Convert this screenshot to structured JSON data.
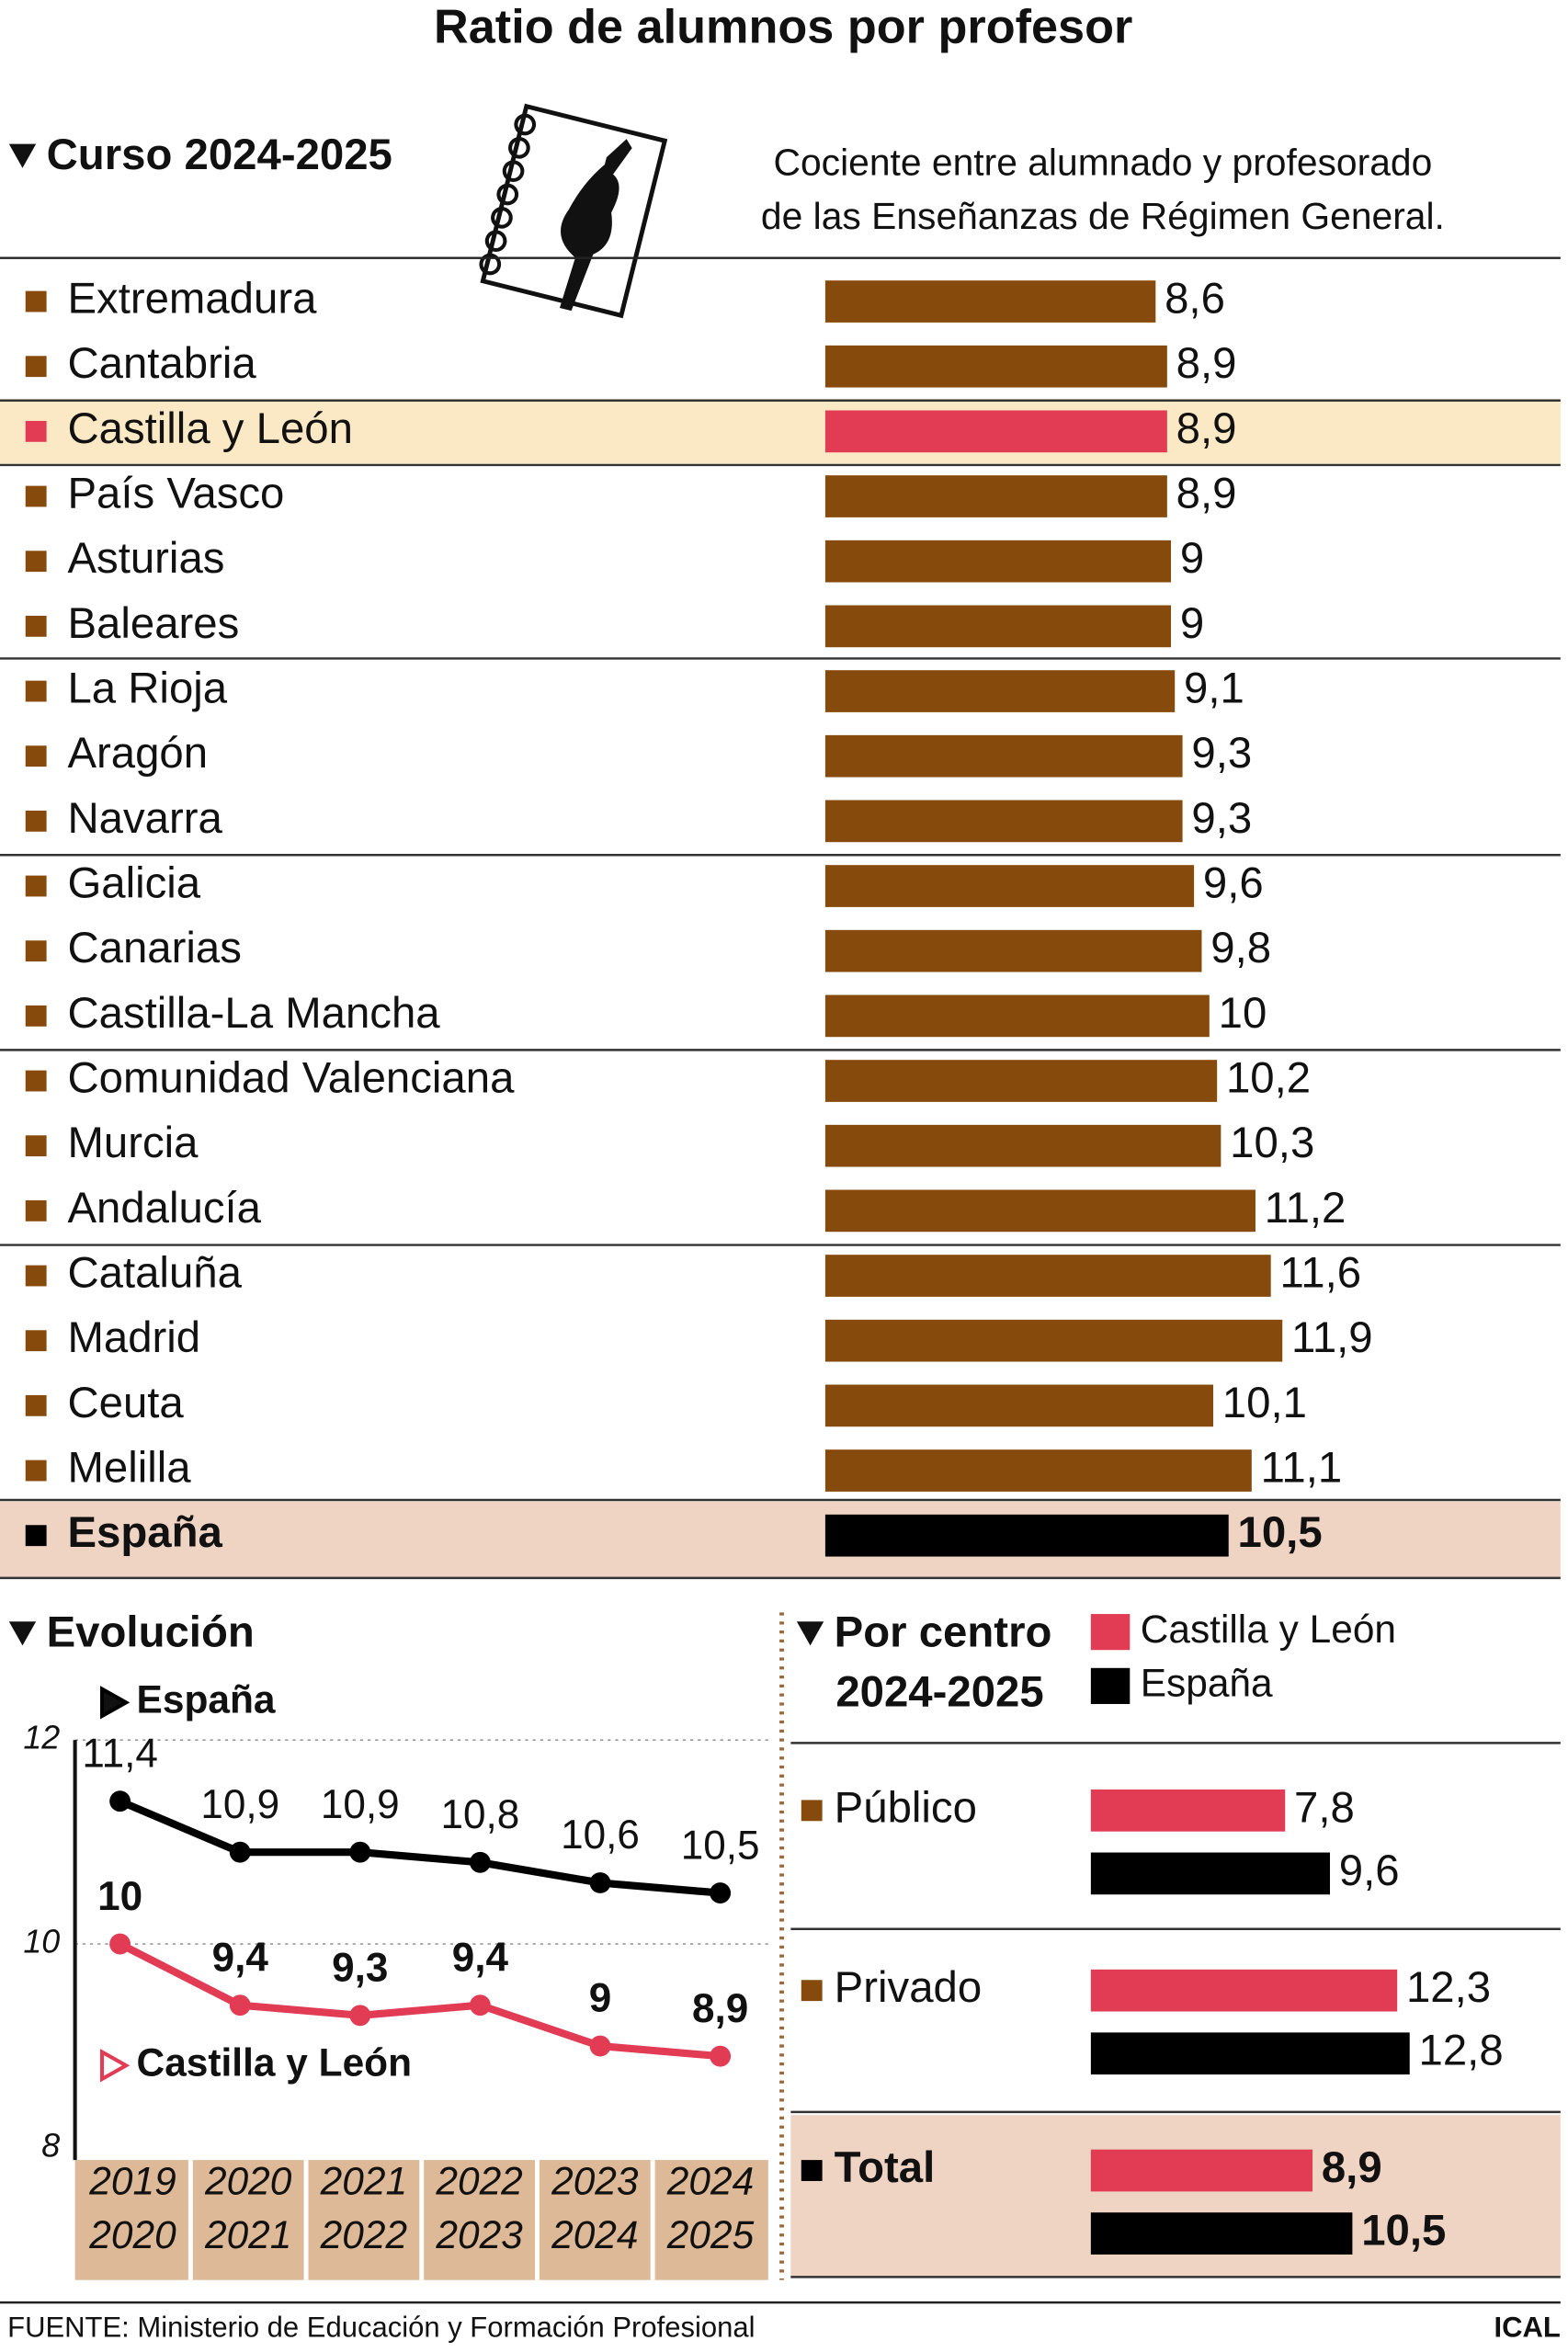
{
  "title": "Ratio de alumnos por profesor",
  "source": "FUENTE: Ministerio de Educación y Formación Profesional",
  "credit": "ICAL",
  "chart_data": [
    {
      "type": "hbar",
      "title": "Curso 2024-2025",
      "subtitle": [
        "Cociente entre alumnado y profesorado",
        "de las Enseñanzas de Régimen General."
      ],
      "categories": [
        "Extremadura",
        "Cantabria",
        "Castilla y León",
        "País Vasco",
        "Asturias",
        "Baleares",
        "La Rioja",
        "Aragón",
        "Navarra",
        "Galicia",
        "Canarias",
        "Castilla-La Mancha",
        "Comunidad Valenciana",
        "Murcia",
        "Andalucía",
        "Cataluña",
        "Madrid",
        "Ceuta",
        "Melilla",
        "España"
      ],
      "values": [
        8.6,
        8.9,
        8.9,
        8.9,
        9,
        9,
        9.1,
        9.3,
        9.3,
        9.6,
        9.8,
        10,
        10.2,
        10.3,
        11.2,
        11.6,
        11.9,
        10.1,
        11.1,
        10.5
      ],
      "value_labels": [
        "8,6",
        "8,9",
        "8,9",
        "8,9",
        "9",
        "9",
        "9,1",
        "9,3",
        "9,3",
        "9,6",
        "9,8",
        "10",
        "10,2",
        "10,3",
        "11,2",
        "11,6",
        "11,9",
        "10,1",
        "11,1",
        "10,5"
      ],
      "colors": [
        "#864b0c",
        "#864b0c",
        "#e23c55",
        "#864b0c",
        "#864b0c",
        "#864b0c",
        "#864b0c",
        "#864b0c",
        "#864b0c",
        "#864b0c",
        "#864b0c",
        "#864b0c",
        "#864b0c",
        "#864b0c",
        "#864b0c",
        "#864b0c",
        "#864b0c",
        "#864b0c",
        "#864b0c",
        "#000000"
      ]
    },
    {
      "type": "line",
      "title": "Evolución",
      "categories": [
        [
          "2019",
          "2020"
        ],
        [
          "2020",
          "2021"
        ],
        [
          "2021",
          "2022"
        ],
        [
          "2022",
          "2023"
        ],
        [
          "2023",
          "2024"
        ],
        [
          "2024",
          "2025"
        ]
      ],
      "series": [
        {
          "name": "España",
          "color": "#000000",
          "values": [
            11.4,
            10.9,
            10.9,
            10.8,
            10.6,
            10.5
          ],
          "value_labels": [
            "11,4",
            "10,9",
            "10,9",
            "10,8",
            "10,6",
            "10,5"
          ]
        },
        {
          "name": "Castilla y León",
          "color": "#e23c55",
          "values": [
            10,
            9.4,
            9.3,
            9.4,
            9,
            8.9
          ],
          "value_labels": [
            "10",
            "9,4",
            "9,3",
            "9,4",
            "9",
            "8,9"
          ]
        }
      ],
      "ylim": [
        8,
        12
      ],
      "yticks": [
        8,
        10,
        12
      ],
      "grid": true
    },
    {
      "type": "grouped-hbar",
      "title": [
        "Por centro",
        "2024-2025"
      ],
      "categories": [
        "Público",
        "Privado",
        "Total"
      ],
      "series": [
        {
          "name": "Castilla y León",
          "color": "#e23c55",
          "values": [
            7.8,
            12.3,
            8.9
          ],
          "value_labels": [
            "7,8",
            "12,3",
            "8,9"
          ]
        },
        {
          "name": "España",
          "color": "#000000",
          "values": [
            9.6,
            12.8,
            10.5
          ],
          "value_labels": [
            "9,6",
            "12,8",
            "10,5"
          ]
        }
      ]
    }
  ]
}
